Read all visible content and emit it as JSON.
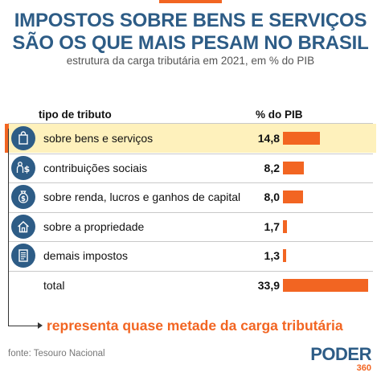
{
  "header": {
    "title_line1": "IMPOSTOS SOBRE BENS E SERVIÇOS",
    "title_line2": "SÃO OS QUE MAIS PESAM NO BRASIL",
    "subtitle": "estrutura da carga tributária em 2021, em % do PIB"
  },
  "table": {
    "col_type": "tipo de tributo",
    "col_pct": "% do PIB"
  },
  "chart_data": {
    "type": "bar",
    "categories": [
      "sobre bens e serviços",
      "contribuições sociais",
      "sobre renda, lucros e ganhos de capital",
      "sobre a propriedade",
      "demais impostos",
      "total"
    ],
    "values": [
      14.8,
      8.2,
      8.0,
      1.7,
      1.3,
      33.9
    ],
    "value_labels": [
      "14,8",
      "8,2",
      "8,0",
      "1,7",
      "1,3",
      "33,9"
    ],
    "icons": [
      "shopping-bag-icon",
      "people-money-icon",
      "money-bag-icon",
      "house-icon",
      "document-icon",
      ""
    ],
    "highlighted": "sobre bens e serviços",
    "orientation": "horizontal",
    "bar_color": "#f26522",
    "highlight_color": "#fef1bc"
  },
  "callout": "representa quase metade da carga tributária",
  "source": "fonte: Tesouro Nacional",
  "logo": {
    "name": "PODER",
    "number": "360"
  },
  "colors": {
    "primary": "#2d5c86",
    "accent": "#f26522"
  }
}
